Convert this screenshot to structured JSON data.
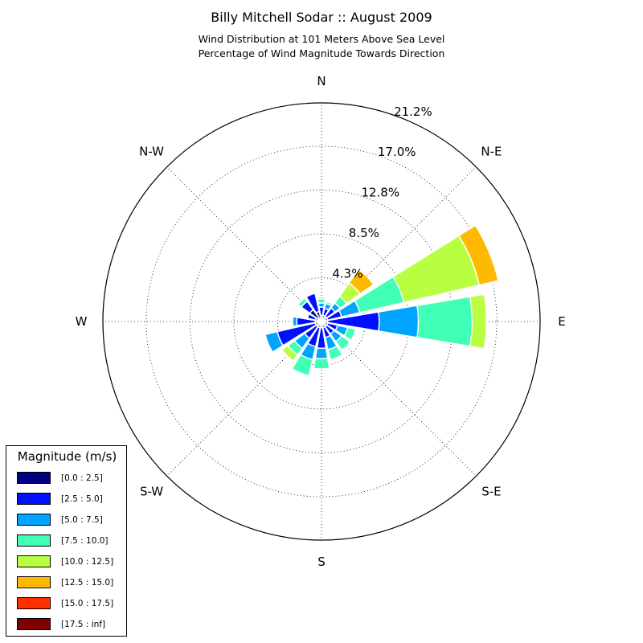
{
  "title": "Billy Mitchell Sodar :: August 2009",
  "subtitle_line1": "Wind Distribution at 101 Meters Above Sea Level",
  "subtitle_line2": "Percentage of Wind Magnitude Towards Direction",
  "chart_data": {
    "type": "wind-rose",
    "radial_ticks": [
      "4.3%",
      "8.5%",
      "12.8%",
      "17.0%",
      "21.2%"
    ],
    "radial_tick_values": [
      4.25,
      8.5,
      12.75,
      17.0,
      21.2
    ],
    "radial_max": 21.2,
    "compass_labels": [
      {
        "label": "N",
        "angle": 0
      },
      {
        "label": "N-E",
        "angle": 45
      },
      {
        "label": "E",
        "angle": 90
      },
      {
        "label": "S-E",
        "angle": 135
      },
      {
        "label": "S",
        "angle": 180
      },
      {
        "label": "S-W",
        "angle": 225
      },
      {
        "label": "W",
        "angle": 270
      },
      {
        "label": "N-W",
        "angle": 315
      }
    ],
    "magnitude_bins": [
      {
        "label": "[0.0 : 2.5]",
        "color": "#000080"
      },
      {
        "label": "[2.5 : 5.0]",
        "color": "#0010ff"
      },
      {
        "label": "[5.0 : 7.5]",
        "color": "#00a4ff"
      },
      {
        "label": "[7.5 : 10.0]",
        "color": "#40ffb7"
      },
      {
        "label": "[10.0 : 12.5]",
        "color": "#b7ff40"
      },
      {
        "label": "[12.5 : 15.0]",
        "color": "#ffb900"
      },
      {
        "label": "[15.0 : 17.5]",
        "color": "#ff3000"
      },
      {
        "label": "[17.5 : inf]",
        "color": "#800000"
      }
    ],
    "sector_width_deg": 22.5,
    "directions": [
      0,
      22.5,
      45,
      67.5,
      90,
      112.5,
      135,
      157.5,
      180,
      202.5,
      225,
      247.5,
      270,
      292.5,
      315,
      337.5
    ],
    "cumulative_percent": [
      [
        0.6,
        1.4,
        1.8,
        2.2,
        2.4,
        2.4,
        2.4,
        2.4
      ],
      [
        0.6,
        1.3,
        1.8,
        2.0,
        2.0,
        2.0,
        2.0,
        2.0
      ],
      [
        0.6,
        1.6,
        2.2,
        3.0,
        4.6,
        6.2,
        6.2,
        6.2
      ],
      [
        0.6,
        2.0,
        3.8,
        8.2,
        15.7,
        17.6,
        17.6,
        17.6
      ],
      [
        0.6,
        5.6,
        9.4,
        14.6,
        16.0,
        16.0,
        16.0,
        16.0
      ],
      [
        0.6,
        1.6,
        2.6,
        3.4,
        3.4,
        3.4,
        3.4,
        3.4
      ],
      [
        0.6,
        1.5,
        2.4,
        3.4,
        3.4,
        3.4,
        3.4,
        3.4
      ],
      [
        0.6,
        1.6,
        2.8,
        3.8,
        3.8,
        3.8,
        3.8,
        3.8
      ],
      [
        0.6,
        2.6,
        3.6,
        4.6,
        4.6,
        4.6,
        4.6,
        4.6
      ],
      [
        0.6,
        2.5,
        3.8,
        5.4,
        5.5,
        5.5,
        5.5,
        5.5
      ],
      [
        0.6,
        2.0,
        3.2,
        4.0,
        4.7,
        4.7,
        4.7,
        4.7
      ],
      [
        0.6,
        4.4,
        5.6,
        5.6,
        5.6,
        5.6,
        5.6,
        5.6
      ],
      [
        0.6,
        2.4,
        2.8,
        2.8,
        2.8,
        2.8,
        2.8,
        2.8
      ],
      [
        0.6,
        1.4,
        1.4,
        1.4,
        1.4,
        1.4,
        1.4,
        1.4
      ],
      [
        1.4,
        2.4,
        2.4,
        2.8,
        2.8,
        2.8,
        2.8,
        2.8
      ],
      [
        1.0,
        2.8,
        2.8,
        2.8,
        2.8,
        2.8,
        2.8,
        2.8
      ]
    ]
  },
  "legend": {
    "title": "Magnitude (m/s)",
    "items": [
      {
        "label": "[0.0 : 2.5]",
        "color": "#000080"
      },
      {
        "label": "[2.5 : 5.0]",
        "color": "#0010ff"
      },
      {
        "label": "[5.0 : 7.5]",
        "color": "#00a4ff"
      },
      {
        "label": "[7.5 : 10.0]",
        "color": "#40ffb7"
      },
      {
        "label": "[10.0 : 12.5]",
        "color": "#b7ff40"
      },
      {
        "label": "[12.5 : 15.0]",
        "color": "#ffb900"
      },
      {
        "label": "[15.0 : 17.5]",
        "color": "#ff3000"
      },
      {
        "label": "[17.5 : inf]",
        "color": "#800000"
      }
    ]
  }
}
